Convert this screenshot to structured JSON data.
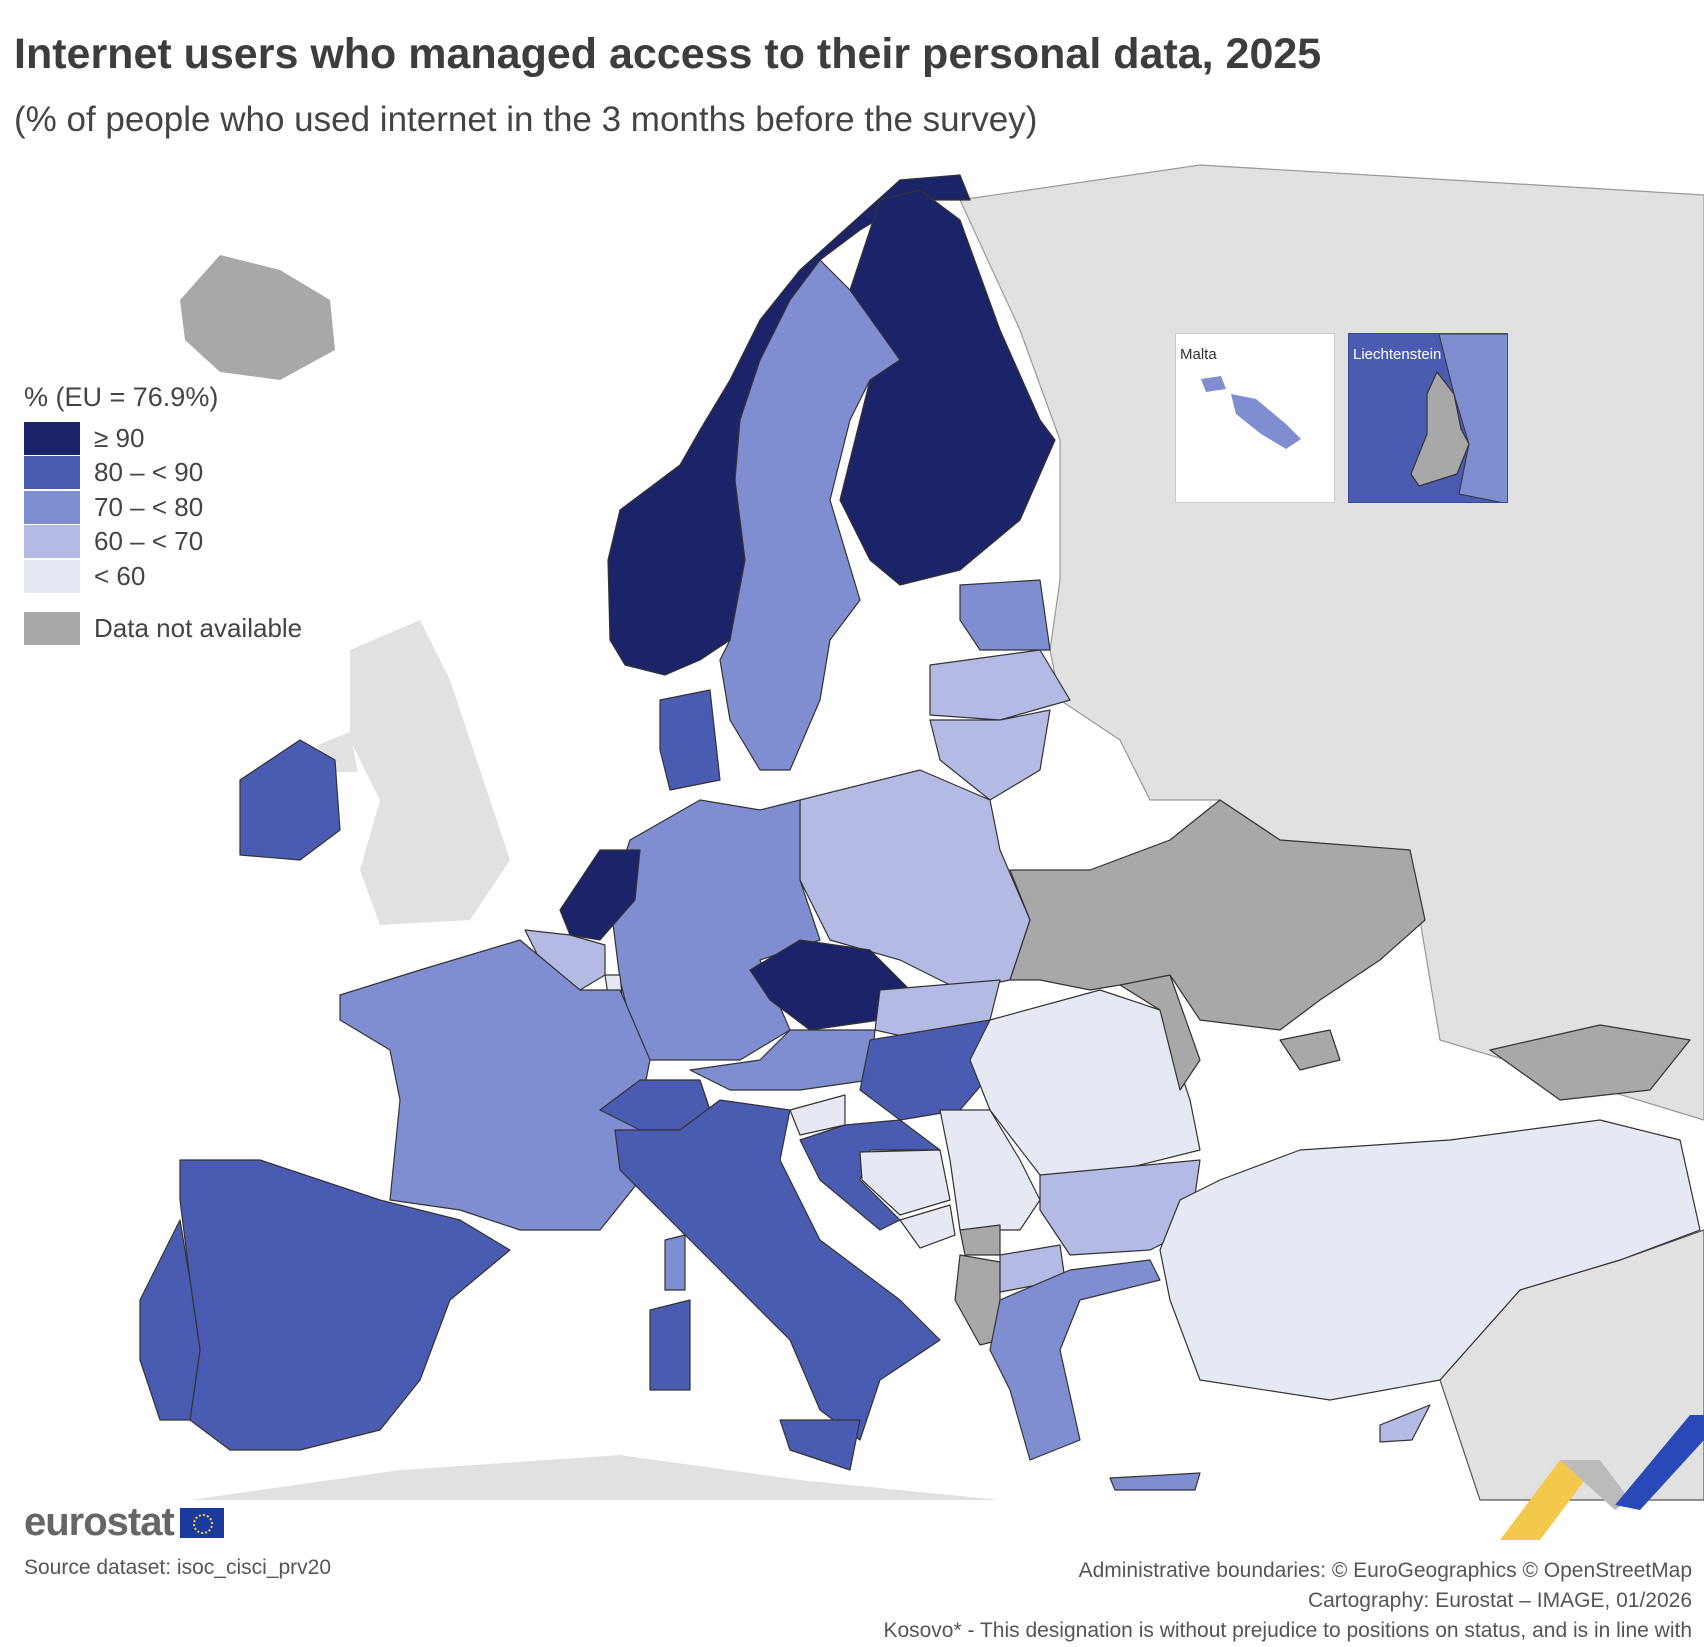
{
  "header": {
    "title": "Internet users who managed access to their personal data, 2025",
    "subtitle": "(% of people who used internet in the 3 months before the survey)"
  },
  "legend": {
    "title": "% (EU = 76.9%)",
    "items": [
      {
        "label": "≥ 90",
        "color": "#1b2468"
      },
      {
        "label": "80 – < 90",
        "color": "#4a5cb1"
      },
      {
        "label": "70 – < 80",
        "color": "#7f8ed0"
      },
      {
        "label": "60 – < 70",
        "color": "#b3bbe4"
      },
      {
        "label": "< 60",
        "color": "#e6e9f4"
      }
    ],
    "na": {
      "label": "Data not available",
      "color": "#a8a8a8"
    }
  },
  "colors": {
    "non_covered": "#e1e1e1",
    "sea": "#ffffff",
    "border": "#333333"
  },
  "countries": {
    "NO": 0,
    "FI": 0,
    "NL": 0,
    "CZ": 0,
    "IE": 1,
    "DK": 1,
    "ES": 1,
    "PT": 1,
    "IT": 1,
    "CH": 1,
    "HU": 1,
    "HR": 1,
    "SE": 2,
    "EE": 2,
    "DE": 2,
    "FR": 2,
    "AT": 2,
    "EL": 2,
    "MT": 2,
    "LV": 3,
    "LT": 3,
    "PL": 3,
    "BE": 3,
    "SK": 3,
    "BG": 3,
    "MK": 3,
    "CY": 3,
    "RO": 4,
    "SI": 4,
    "RS": 4,
    "BA": 4,
    "ME": 4,
    "TR": 4,
    "LU": 4,
    "IS": "na",
    "UA": "na",
    "AL": "na",
    "XK": "na",
    "MD": "na",
    "GE": "na",
    "LI": "na"
  },
  "insets": {
    "malta": "Malta",
    "liechtenstein": "Liechtenstein"
  },
  "footer": {
    "logo": "eurostat",
    "source": "Source dataset: isoc_cisci_prv20",
    "boundaries": "Administrative boundaries: © EuroGeographics © OpenStreetMap",
    "cartography": "Cartography: Eurostat – IMAGE, 01/2026",
    "kosovo": "Kosovo* - This designation is without prejudice to positions on status, and is in line with"
  }
}
